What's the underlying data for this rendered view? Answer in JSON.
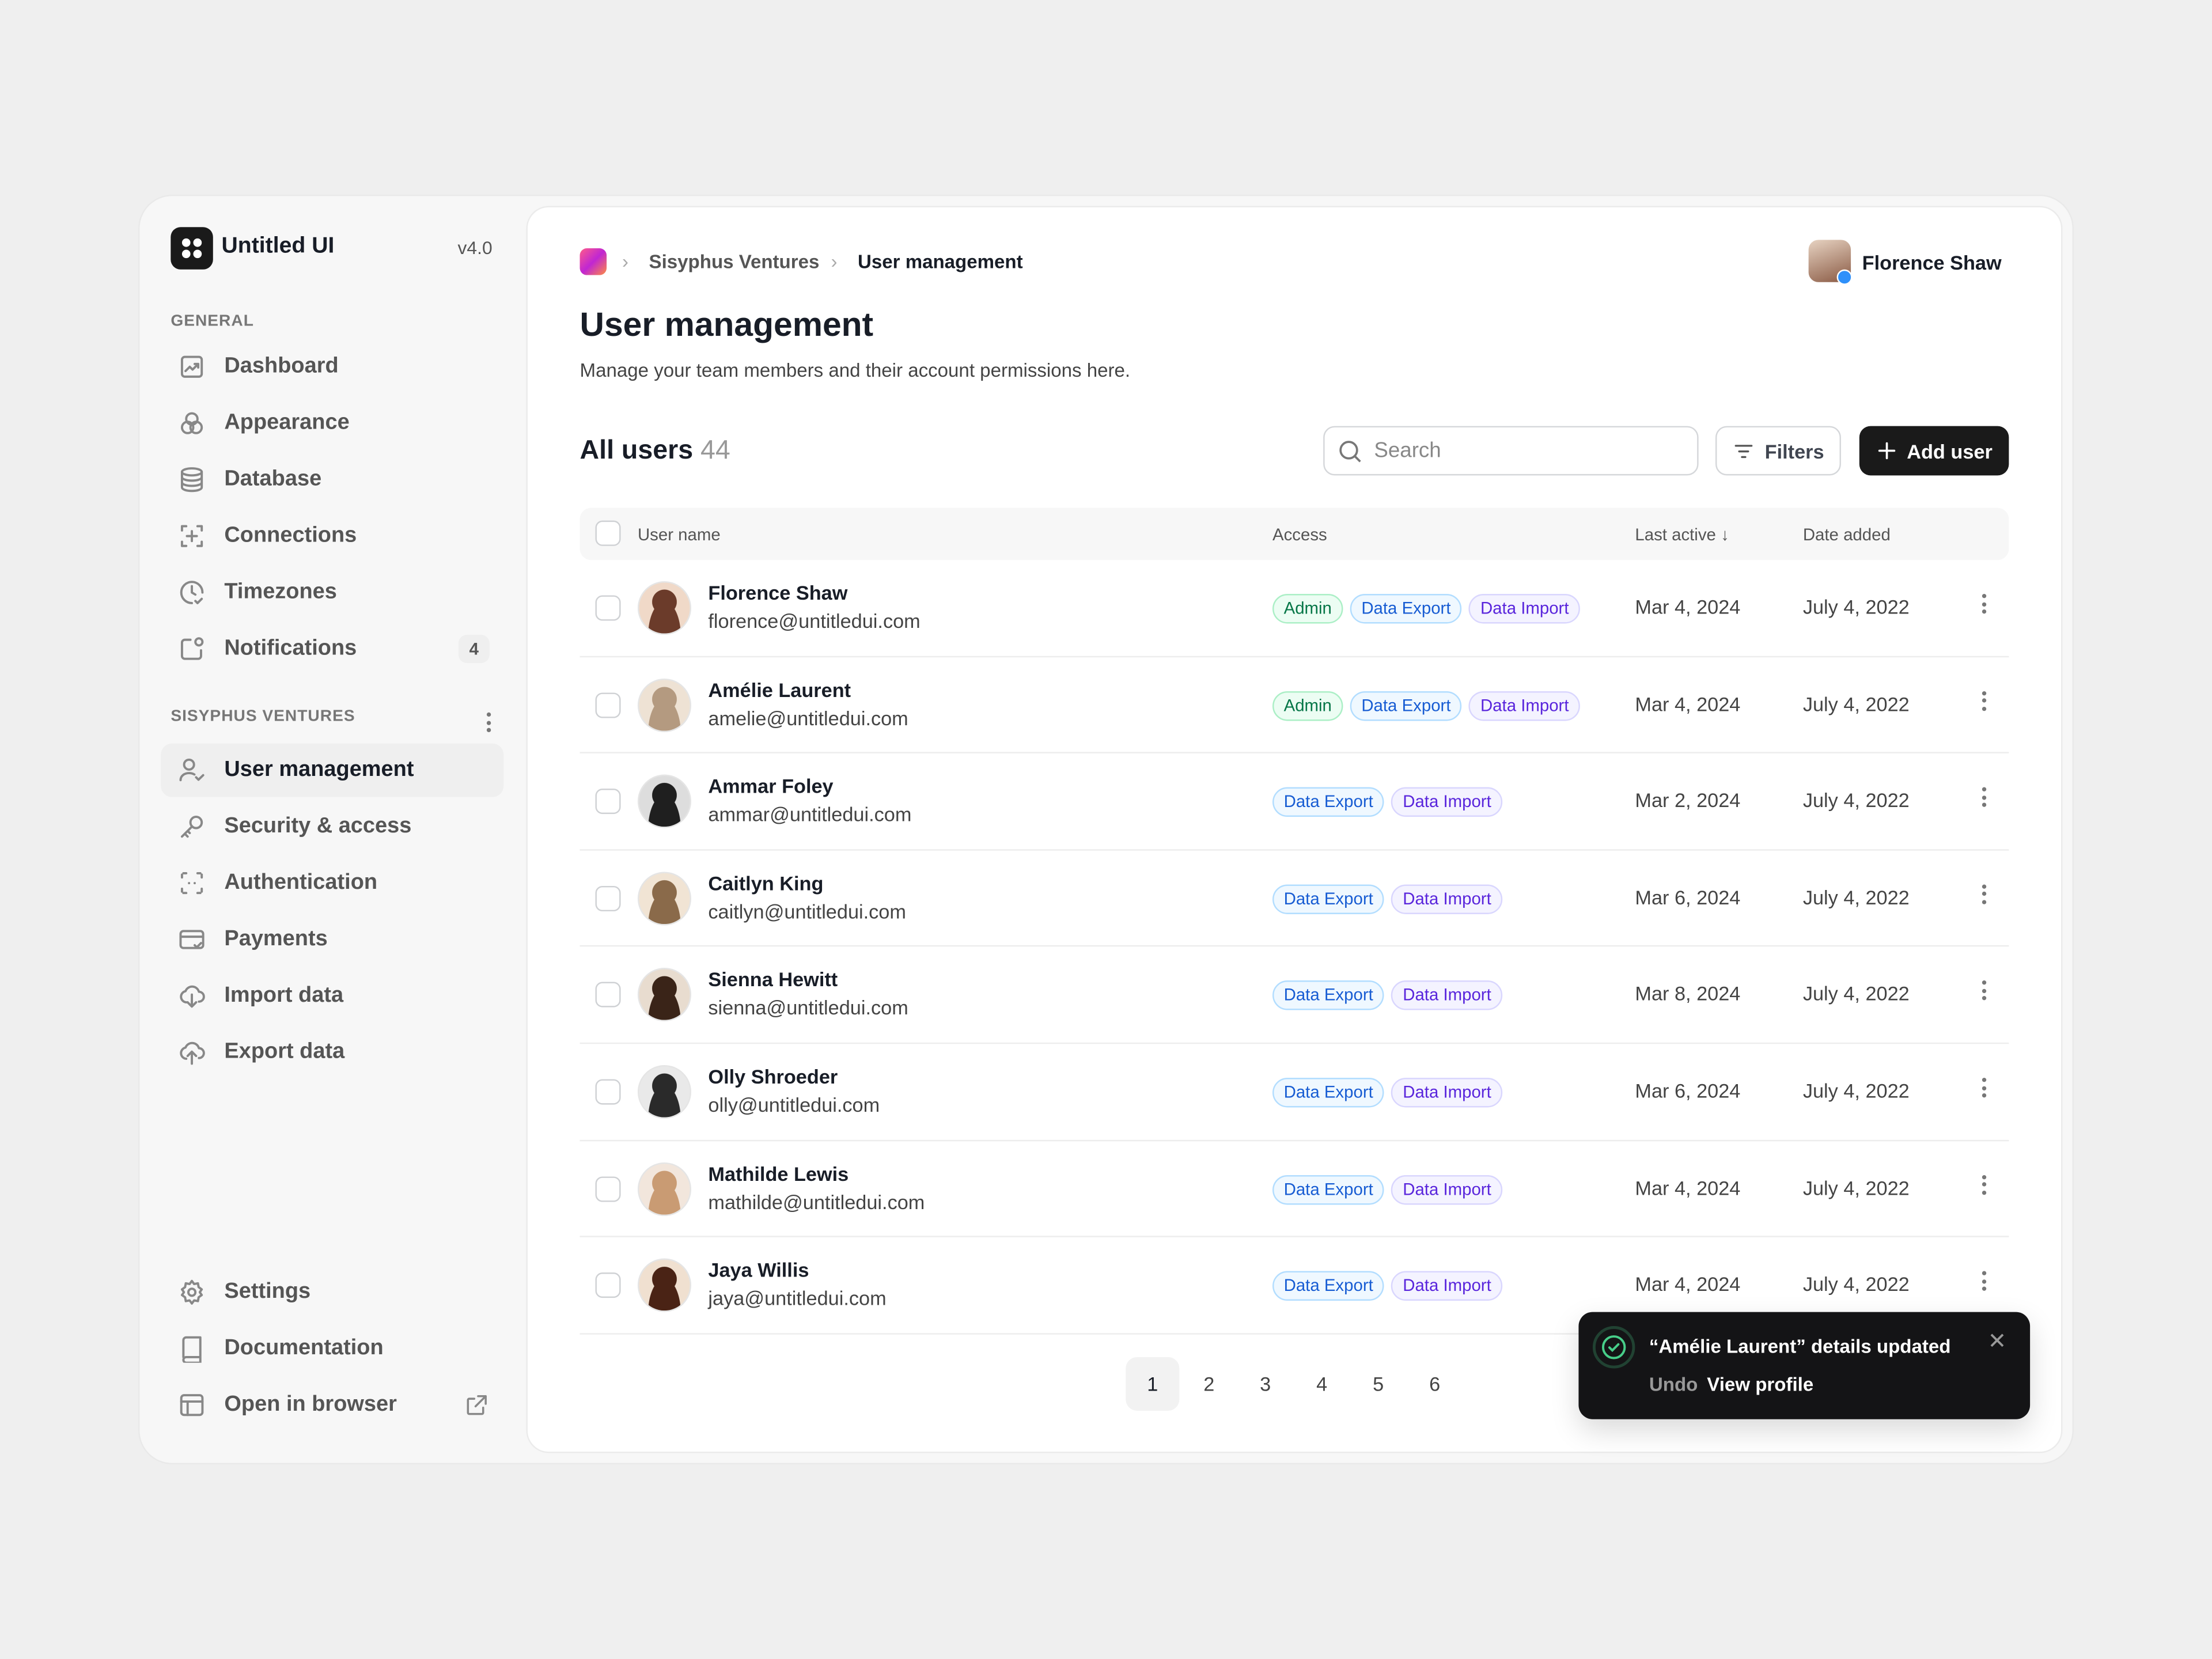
{
  "app": {
    "name": "Untitled UI",
    "version": "v4.0"
  },
  "sidebar": {
    "general_label": "GENERAL",
    "general": [
      {
        "label": "Dashboard",
        "icon": "chart-icon"
      },
      {
        "label": "Appearance",
        "icon": "circles-icon"
      },
      {
        "label": "Database",
        "icon": "database-icon"
      },
      {
        "label": "Connections",
        "icon": "plus-frame-icon"
      },
      {
        "label": "Timezones",
        "icon": "clock-check-icon"
      },
      {
        "label": "Notifications",
        "icon": "notification-icon",
        "badge": "4"
      }
    ],
    "workspace_label": "SISYPHUS VENTURES",
    "workspace": [
      {
        "label": "User management",
        "icon": "users-check-icon",
        "active": true
      },
      {
        "label": "Security & access",
        "icon": "key-icon"
      },
      {
        "label": "Authentication",
        "icon": "scan-icon"
      },
      {
        "label": "Payments",
        "icon": "credit-card-icon"
      },
      {
        "label": "Import data",
        "icon": "cloud-download-icon"
      },
      {
        "label": "Export data",
        "icon": "cloud-upload-icon"
      }
    ],
    "footer": [
      {
        "label": "Settings",
        "icon": "gear-icon"
      },
      {
        "label": "Documentation",
        "icon": "book-icon"
      },
      {
        "label": "Open in browser",
        "icon": "browser-icon"
      }
    ]
  },
  "breadcrumb": [
    "Sisyphus Ventures",
    "User management"
  ],
  "current_user": "Florence Shaw",
  "page": {
    "title": "User management",
    "subtitle": "Manage your team members and their account permissions here.",
    "count_label": "All users",
    "count": "44"
  },
  "toolbar": {
    "search_placeholder": "Search",
    "filters": "Filters",
    "add_user": "Add user"
  },
  "table": {
    "columns": [
      "User name",
      "Access",
      "Last active",
      "Date added"
    ],
    "rows": [
      {
        "name": "Florence Shaw",
        "email": "florence@untitledui.com",
        "access": [
          "Admin",
          "Data Export",
          "Data Import"
        ],
        "last_active": "Mar 4, 2024",
        "date_added": "July 4, 2022"
      },
      {
        "name": "Amélie Laurent",
        "email": "amelie@untitledui.com",
        "access": [
          "Admin",
          "Data Export",
          "Data Import"
        ],
        "last_active": "Mar 4, 2024",
        "date_added": "July 4, 2022"
      },
      {
        "name": "Ammar Foley",
        "email": "ammar@untitledui.com",
        "access": [
          "Data Export",
          "Data Import"
        ],
        "last_active": "Mar 2, 2024",
        "date_added": "July 4, 2022"
      },
      {
        "name": "Caitlyn King",
        "email": "caitlyn@untitledui.com",
        "access": [
          "Data Export",
          "Data Import"
        ],
        "last_active": "Mar 6, 2024",
        "date_added": "July 4, 2022"
      },
      {
        "name": "Sienna Hewitt",
        "email": "sienna@untitledui.com",
        "access": [
          "Data Export",
          "Data Import"
        ],
        "last_active": "Mar 8, 2024",
        "date_added": "July 4, 2022"
      },
      {
        "name": "Olly Shroeder",
        "email": "olly@untitledui.com",
        "access": [
          "Data Export",
          "Data Import"
        ],
        "last_active": "Mar 6, 2024",
        "date_added": "July 4, 2022"
      },
      {
        "name": "Mathilde Lewis",
        "email": "mathilde@untitledui.com",
        "access": [
          "Data Export",
          "Data Import"
        ],
        "last_active": "Mar 4, 2024",
        "date_added": "July 4, 2022"
      },
      {
        "name": "Jaya Willis",
        "email": "jaya@untitledui.com",
        "access": [
          "Data Export",
          "Data Import"
        ],
        "last_active": "Mar 4, 2024",
        "date_added": "July 4, 2022"
      }
    ]
  },
  "pagination": {
    "pages": [
      "1",
      "2",
      "3",
      "4",
      "5",
      "6"
    ],
    "current": "1"
  },
  "toast": {
    "message": "“Amélie Laurent” details updated",
    "undo": "Undo",
    "view_profile": "View profile"
  },
  "colors": {
    "admin": "#067647",
    "export": "#175cd3",
    "import": "#5925dc",
    "success": "#47cd89"
  }
}
